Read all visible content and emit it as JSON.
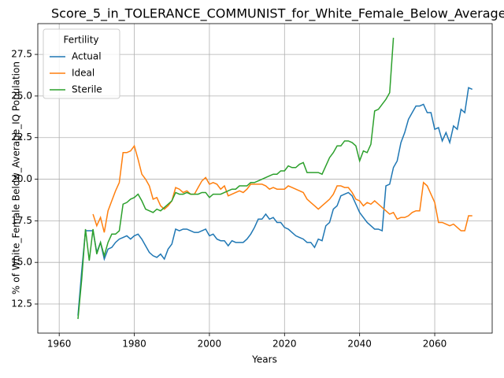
{
  "chart_data": {
    "type": "line",
    "title": "Score_5_in_TOLERANCE_COMMUNIST_for_White_Female_Below_Average_",
    "x_label": "Years",
    "y_label": "% of White_Female Below_Average_IQ Population",
    "legend_title": "Fertility",
    "legend": "upper left",
    "grid": true,
    "xlim": [
      1954.3,
      2075.3
    ],
    "ylim": [
      10.75,
      29.35
    ],
    "xticks": [
      1960,
      1980,
      2000,
      2020,
      2040,
      2060
    ],
    "yticks": [
      12.5,
      {
        "value": 15,
        "label": "15.0"
      },
      17.5,
      {
        "value": 20,
        "label": "20.0"
      },
      22.5,
      {
        "value": 25,
        "label": "25.0"
      },
      27.5
    ],
    "x": [
      1965,
      1966,
      1967,
      1968,
      1969,
      1970,
      1971,
      1972,
      1973,
      1974,
      1975,
      1976,
      1977,
      1978,
      1979,
      1980,
      1981,
      1982,
      1983,
      1984,
      1985,
      1986,
      1987,
      1988,
      1989,
      1990,
      1991,
      1992,
      1993,
      1994,
      1995,
      1996,
      1997,
      1998,
      1999,
      2000,
      2001,
      2002,
      2003,
      2004,
      2005,
      2006,
      2007,
      2008,
      2009,
      2010,
      2011,
      2012,
      2013,
      2014,
      2015,
      2016,
      2017,
      2018,
      2019,
      2020,
      2021,
      2022,
      2023,
      2024,
      2025,
      2026,
      2027,
      2028,
      2029,
      2030,
      2031,
      2032,
      2033,
      2034,
      2035,
      2036,
      2037,
      2038,
      2039,
      2040,
      2041,
      2042,
      2043,
      2044,
      2045,
      2046,
      2047,
      2048,
      2049,
      2050,
      2051,
      2052,
      2053,
      2054,
      2055,
      2056,
      2057,
      2058,
      2059,
      2060,
      2061,
      2062,
      2063,
      2064,
      2065,
      2066,
      2067,
      2068,
      2069,
      2070
    ],
    "series": [
      {
        "name": "Actual",
        "color": "#1f77b4",
        "values": [
          11.8,
          14.5,
          16.9,
          16.9,
          16.9,
          15.6,
          16.2,
          15.2,
          15.8,
          15.9,
          16.2,
          16.4,
          16.5,
          16.6,
          16.4,
          16.6,
          16.7,
          16.4,
          16.0,
          15.6,
          15.4,
          15.3,
          15.5,
          15.2,
          15.8,
          16.1,
          17.0,
          16.9,
          17.0,
          17.0,
          16.9,
          16.8,
          16.8,
          16.9,
          17.0,
          16.6,
          16.7,
          16.4,
          16.3,
          16.3,
          16.0,
          16.3,
          16.2,
          16.2,
          16.2,
          16.4,
          16.7,
          17.1,
          17.6,
          17.6,
          17.9,
          17.6,
          17.7,
          17.4,
          17.4,
          17.1,
          17.0,
          16.8,
          16.6,
          16.5,
          16.4,
          16.2,
          16.2,
          15.9,
          16.4,
          16.3,
          17.2,
          17.4,
          18.2,
          18.4,
          19.0,
          19.1,
          19.2,
          19.0,
          18.5,
          18.0,
          17.7,
          17.4,
          17.2,
          17.0,
          17.0,
          16.9,
          19.6,
          19.7,
          20.7,
          21.1,
          22.2,
          22.8,
          23.6,
          24.0,
          24.4,
          24.4,
          24.5,
          24.0,
          24.0,
          23.0,
          23.1,
          22.3,
          22.8,
          22.2,
          23.2,
          23.0,
          24.2,
          24.0,
          25.5,
          25.4
        ]
      },
      {
        "name": "Ideal",
        "color": "#ff7f0e",
        "values": [
          null,
          null,
          null,
          null,
          17.9,
          17.2,
          17.7,
          16.8,
          18.1,
          18.7,
          19.3,
          19.8,
          21.6,
          21.6,
          21.7,
          22.0,
          21.2,
          20.3,
          20.0,
          19.6,
          18.8,
          18.9,
          18.4,
          18.2,
          18.4,
          18.7,
          19.5,
          19.4,
          19.2,
          19.3,
          19.1,
          19.1,
          19.5,
          19.9,
          20.1,
          19.7,
          19.8,
          19.7,
          19.4,
          19.6,
          19.0,
          19.1,
          19.2,
          19.3,
          19.2,
          19.4,
          19.7,
          19.7,
          19.7,
          19.7,
          19.6,
          19.4,
          19.5,
          19.4,
          19.4,
          19.4,
          19.6,
          19.5,
          19.4,
          19.3,
          19.2,
          18.8,
          18.6,
          18.4,
          18.2,
          18.4,
          18.6,
          18.8,
          19.1,
          19.6,
          19.6,
          19.5,
          19.5,
          19.2,
          18.8,
          18.7,
          18.4,
          18.6,
          18.5,
          18.7,
          18.5,
          18.3,
          18.1,
          17.9,
          18.0,
          17.6,
          17.7,
          17.7,
          17.8,
          18.0,
          18.1,
          18.1,
          19.8,
          19.6,
          19.1,
          18.6,
          17.4,
          17.4,
          17.3,
          17.2,
          17.3,
          17.1,
          16.9,
          16.9,
          17.8,
          17.8
        ]
      },
      {
        "name": "Sterile",
        "color": "#2ca02c",
        "values": [
          11.6,
          14.0,
          17.0,
          15.1,
          17.0,
          15.5,
          16.2,
          15.4,
          16.2,
          16.7,
          16.7,
          16.9,
          18.5,
          18.6,
          18.8,
          18.9,
          19.1,
          18.7,
          18.2,
          18.1,
          18.0,
          18.2,
          18.1,
          18.3,
          18.5,
          18.7,
          19.2,
          19.1,
          19.1,
          19.2,
          19.1,
          19.1,
          19.1,
          19.2,
          19.2,
          18.9,
          19.1,
          19.1,
          19.1,
          19.2,
          19.3,
          19.4,
          19.4,
          19.6,
          19.6,
          19.6,
          19.8,
          19.8,
          19.9,
          20.0,
          20.1,
          20.2,
          20.3,
          20.3,
          20.5,
          20.5,
          20.8,
          20.7,
          20.7,
          20.9,
          21.0,
          20.4,
          20.4,
          20.4,
          20.4,
          20.3,
          20.8,
          21.3,
          21.6,
          22.0,
          22.0,
          22.3,
          22.3,
          22.2,
          22.0,
          21.1,
          21.7,
          21.6,
          22.1,
          24.1,
          24.2,
          24.5,
          24.8,
          25.2,
          28.5,
          null,
          null,
          null,
          null,
          null,
          null,
          null,
          null,
          null,
          null,
          null,
          null,
          null,
          null,
          null,
          null,
          null,
          null,
          null,
          null,
          null
        ]
      }
    ]
  }
}
